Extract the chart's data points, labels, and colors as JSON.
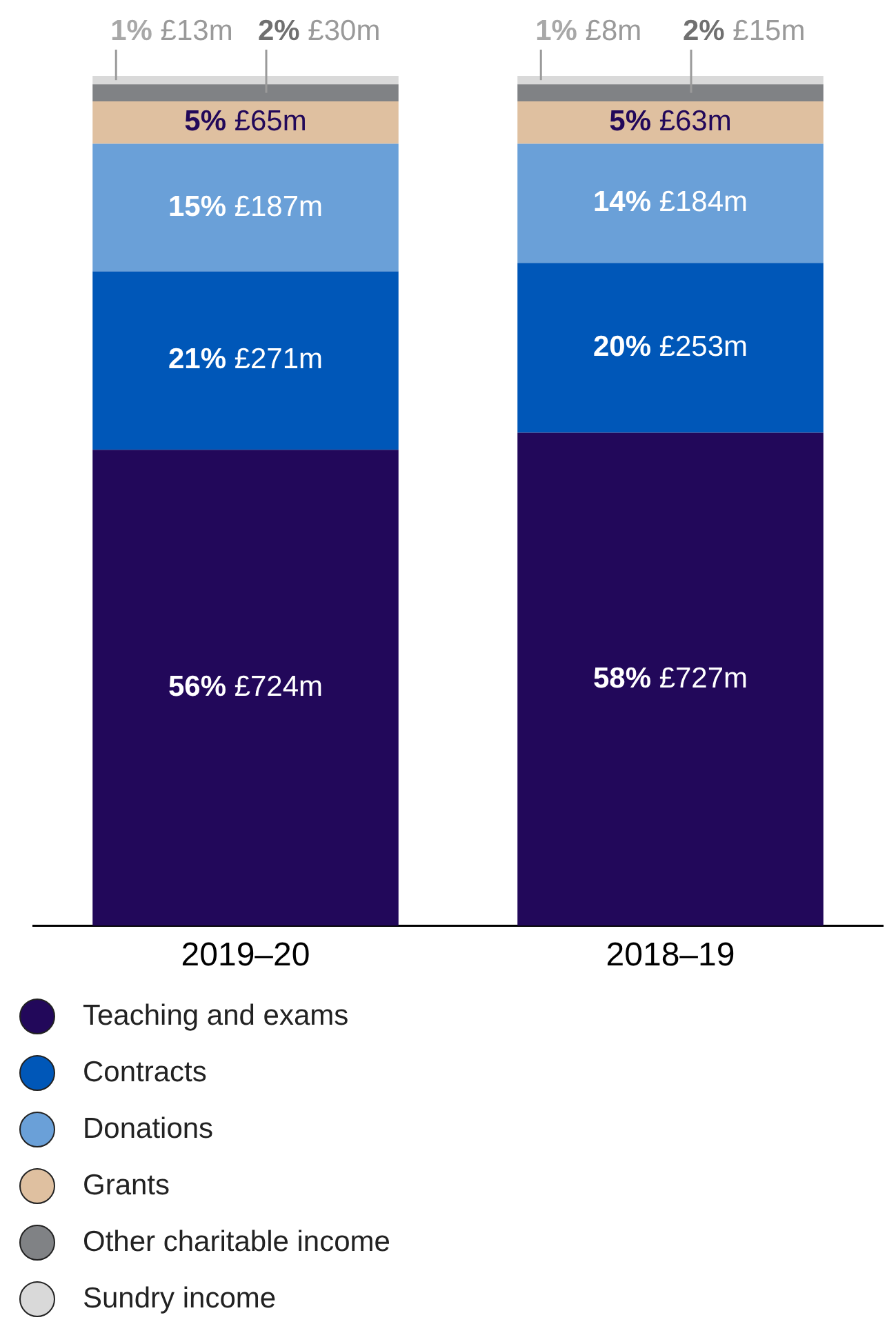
{
  "chart_data": {
    "type": "bar",
    "stacked": true,
    "categories": [
      "2019–20",
      "2018–19"
    ],
    "ylim": [
      0,
      100
    ],
    "tick_labels": "x",
    "grid": false,
    "legend": "bottom",
    "series": [
      {
        "name": "Teaching and exams",
        "color": "#22085a",
        "values": [
          56,
          58
        ],
        "value_labels": [
          "56% £724m",
          "58% £727m"
        ]
      },
      {
        "name": "Contracts",
        "color": "#0057b8",
        "values": [
          21,
          20
        ],
        "value_labels": [
          "21% £271m",
          "20% £253m"
        ]
      },
      {
        "name": "Donations",
        "color": "#6aa0d8",
        "values": [
          15,
          14
        ],
        "value_labels": [
          "15% £187m",
          "14% £184m"
        ]
      },
      {
        "name": "Grants",
        "color": "#dfc0a0",
        "values": [
          5,
          5
        ],
        "value_labels": [
          "5% £65m",
          "5% £63m"
        ]
      },
      {
        "name": "Other charitable income",
        "color": "#808285",
        "values": [
          2,
          2
        ],
        "value_labels": [
          "2% £30m",
          "2% £15m"
        ]
      },
      {
        "name": "Sundry income",
        "color": "#d9d9d9",
        "values": [
          1,
          1
        ],
        "value_labels": [
          "1% £13m",
          "1% £8m"
        ]
      }
    ]
  }
}
